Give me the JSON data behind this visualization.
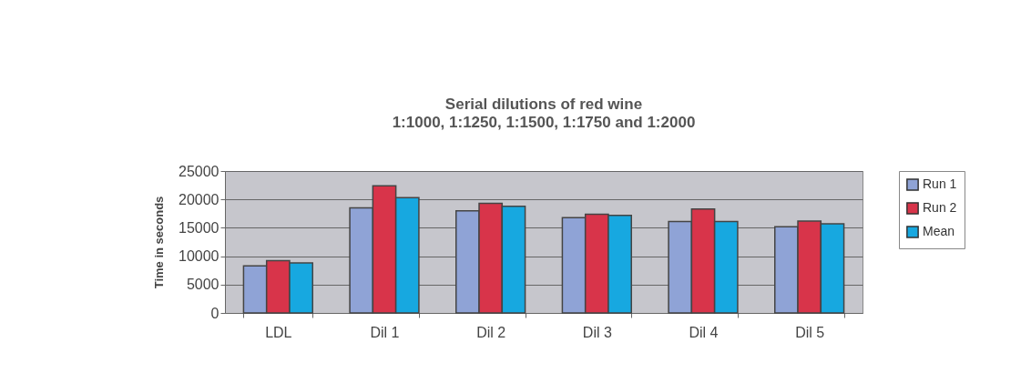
{
  "chart_data": {
    "type": "bar",
    "title": "Serial dilutions of red wine",
    "subtitle": "1:1000, 1:1250, 1:1500, 1:1750 and 1:2000",
    "ylabel": "Time in seconds",
    "categories": [
      "LDL",
      "Dil 1",
      "Dil 2",
      "Dil 3",
      "Dil 4",
      "Dil 5"
    ],
    "series": [
      {
        "name": "Run 1",
        "color": "#8fa3d6",
        "values": [
          8300,
          18500,
          18000,
          16800,
          16100,
          15200
        ]
      },
      {
        "name": "Run 2",
        "color": "#d8344a",
        "values": [
          9200,
          22400,
          19300,
          17400,
          18300,
          16200
        ]
      },
      {
        "name": "Mean",
        "color": "#17a8e0",
        "values": [
          8800,
          20300,
          18800,
          17200,
          16100,
          15700
        ]
      }
    ],
    "ylim": [
      0,
      25000
    ],
    "yticks": [
      0,
      5000,
      10000,
      15000,
      20000,
      25000
    ],
    "grid": "y",
    "legend": "right"
  }
}
